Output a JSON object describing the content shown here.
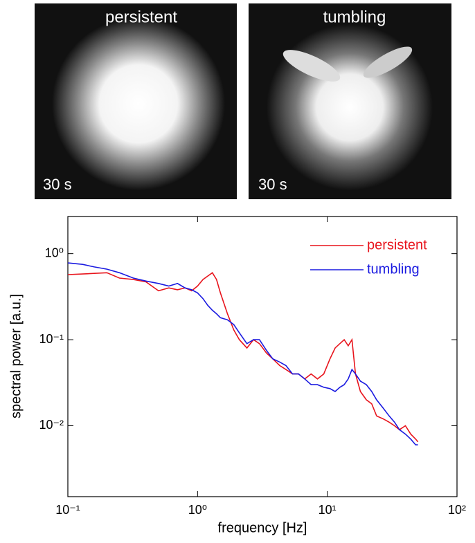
{
  "panels": [
    {
      "title": "persistent",
      "time": "30 s"
    },
    {
      "title": "tumbling",
      "time": "30 s"
    }
  ],
  "chart_data": {
    "type": "line",
    "x_label": "frequency [Hz]",
    "y_label": "spectral power [a.u.]",
    "xscale": "log",
    "yscale": "log",
    "xlim": [
      0.1,
      100
    ],
    "ylim": [
      0.0015,
      2.7
    ],
    "xticks": [
      {
        "value": 0.1,
        "label": "10⁻¹"
      },
      {
        "value": 1,
        "label": "10⁰"
      },
      {
        "value": 10,
        "label": "10¹"
      },
      {
        "value": 100,
        "label": "10²"
      }
    ],
    "yticks": [
      {
        "value": 0.01,
        "label": "10⁻²"
      },
      {
        "value": 0.1,
        "label": "10⁻¹"
      },
      {
        "value": 1,
        "label": "10⁰"
      }
    ],
    "legend": "upper right",
    "x": [
      0.1,
      0.13,
      0.16,
      0.2,
      0.25,
      0.32,
      0.4,
      0.5,
      0.6,
      0.7,
      0.8,
      0.9,
      1.0,
      1.1,
      1.2,
      1.3,
      1.4,
      1.5,
      1.7,
      1.9,
      2.1,
      2.4,
      2.7,
      3.0,
      3.4,
      3.8,
      4.3,
      4.8,
      5.4,
      6.0,
      6.7,
      7.5,
      8.4,
      9.4,
      10.5,
      11.5,
      12.5,
      13.5,
      14.5,
      15.5,
      16.5,
      18,
      20,
      22,
      24,
      27,
      30,
      33,
      36,
      40,
      44,
      48,
      50
    ],
    "series": [
      {
        "name": "persistent",
        "color": "#e8141c",
        "values": [
          0.57,
          0.58,
          0.59,
          0.6,
          0.52,
          0.5,
          0.47,
          0.37,
          0.4,
          0.38,
          0.4,
          0.37,
          0.42,
          0.5,
          0.55,
          0.6,
          0.5,
          0.35,
          0.2,
          0.13,
          0.1,
          0.08,
          0.1,
          0.09,
          0.07,
          0.06,
          0.05,
          0.045,
          0.04,
          0.04,
          0.035,
          0.04,
          0.035,
          0.04,
          0.06,
          0.08,
          0.09,
          0.1,
          0.085,
          0.1,
          0.04,
          0.025,
          0.02,
          0.018,
          0.013,
          0.012,
          0.011,
          0.01,
          0.009,
          0.01,
          0.008,
          0.007,
          0.0065
        ]
      },
      {
        "name": "tumbling",
        "color": "#1a1ae0",
        "values": [
          0.78,
          0.75,
          0.7,
          0.66,
          0.6,
          0.52,
          0.48,
          0.45,
          0.42,
          0.45,
          0.4,
          0.38,
          0.35,
          0.3,
          0.25,
          0.22,
          0.2,
          0.18,
          0.17,
          0.15,
          0.12,
          0.09,
          0.1,
          0.1,
          0.075,
          0.06,
          0.055,
          0.05,
          0.04,
          0.04,
          0.035,
          0.03,
          0.03,
          0.028,
          0.027,
          0.025,
          0.028,
          0.03,
          0.035,
          0.045,
          0.04,
          0.033,
          0.03,
          0.025,
          0.02,
          0.016,
          0.013,
          0.011,
          0.009,
          0.008,
          0.007,
          0.006,
          0.006
        ]
      }
    ]
  }
}
